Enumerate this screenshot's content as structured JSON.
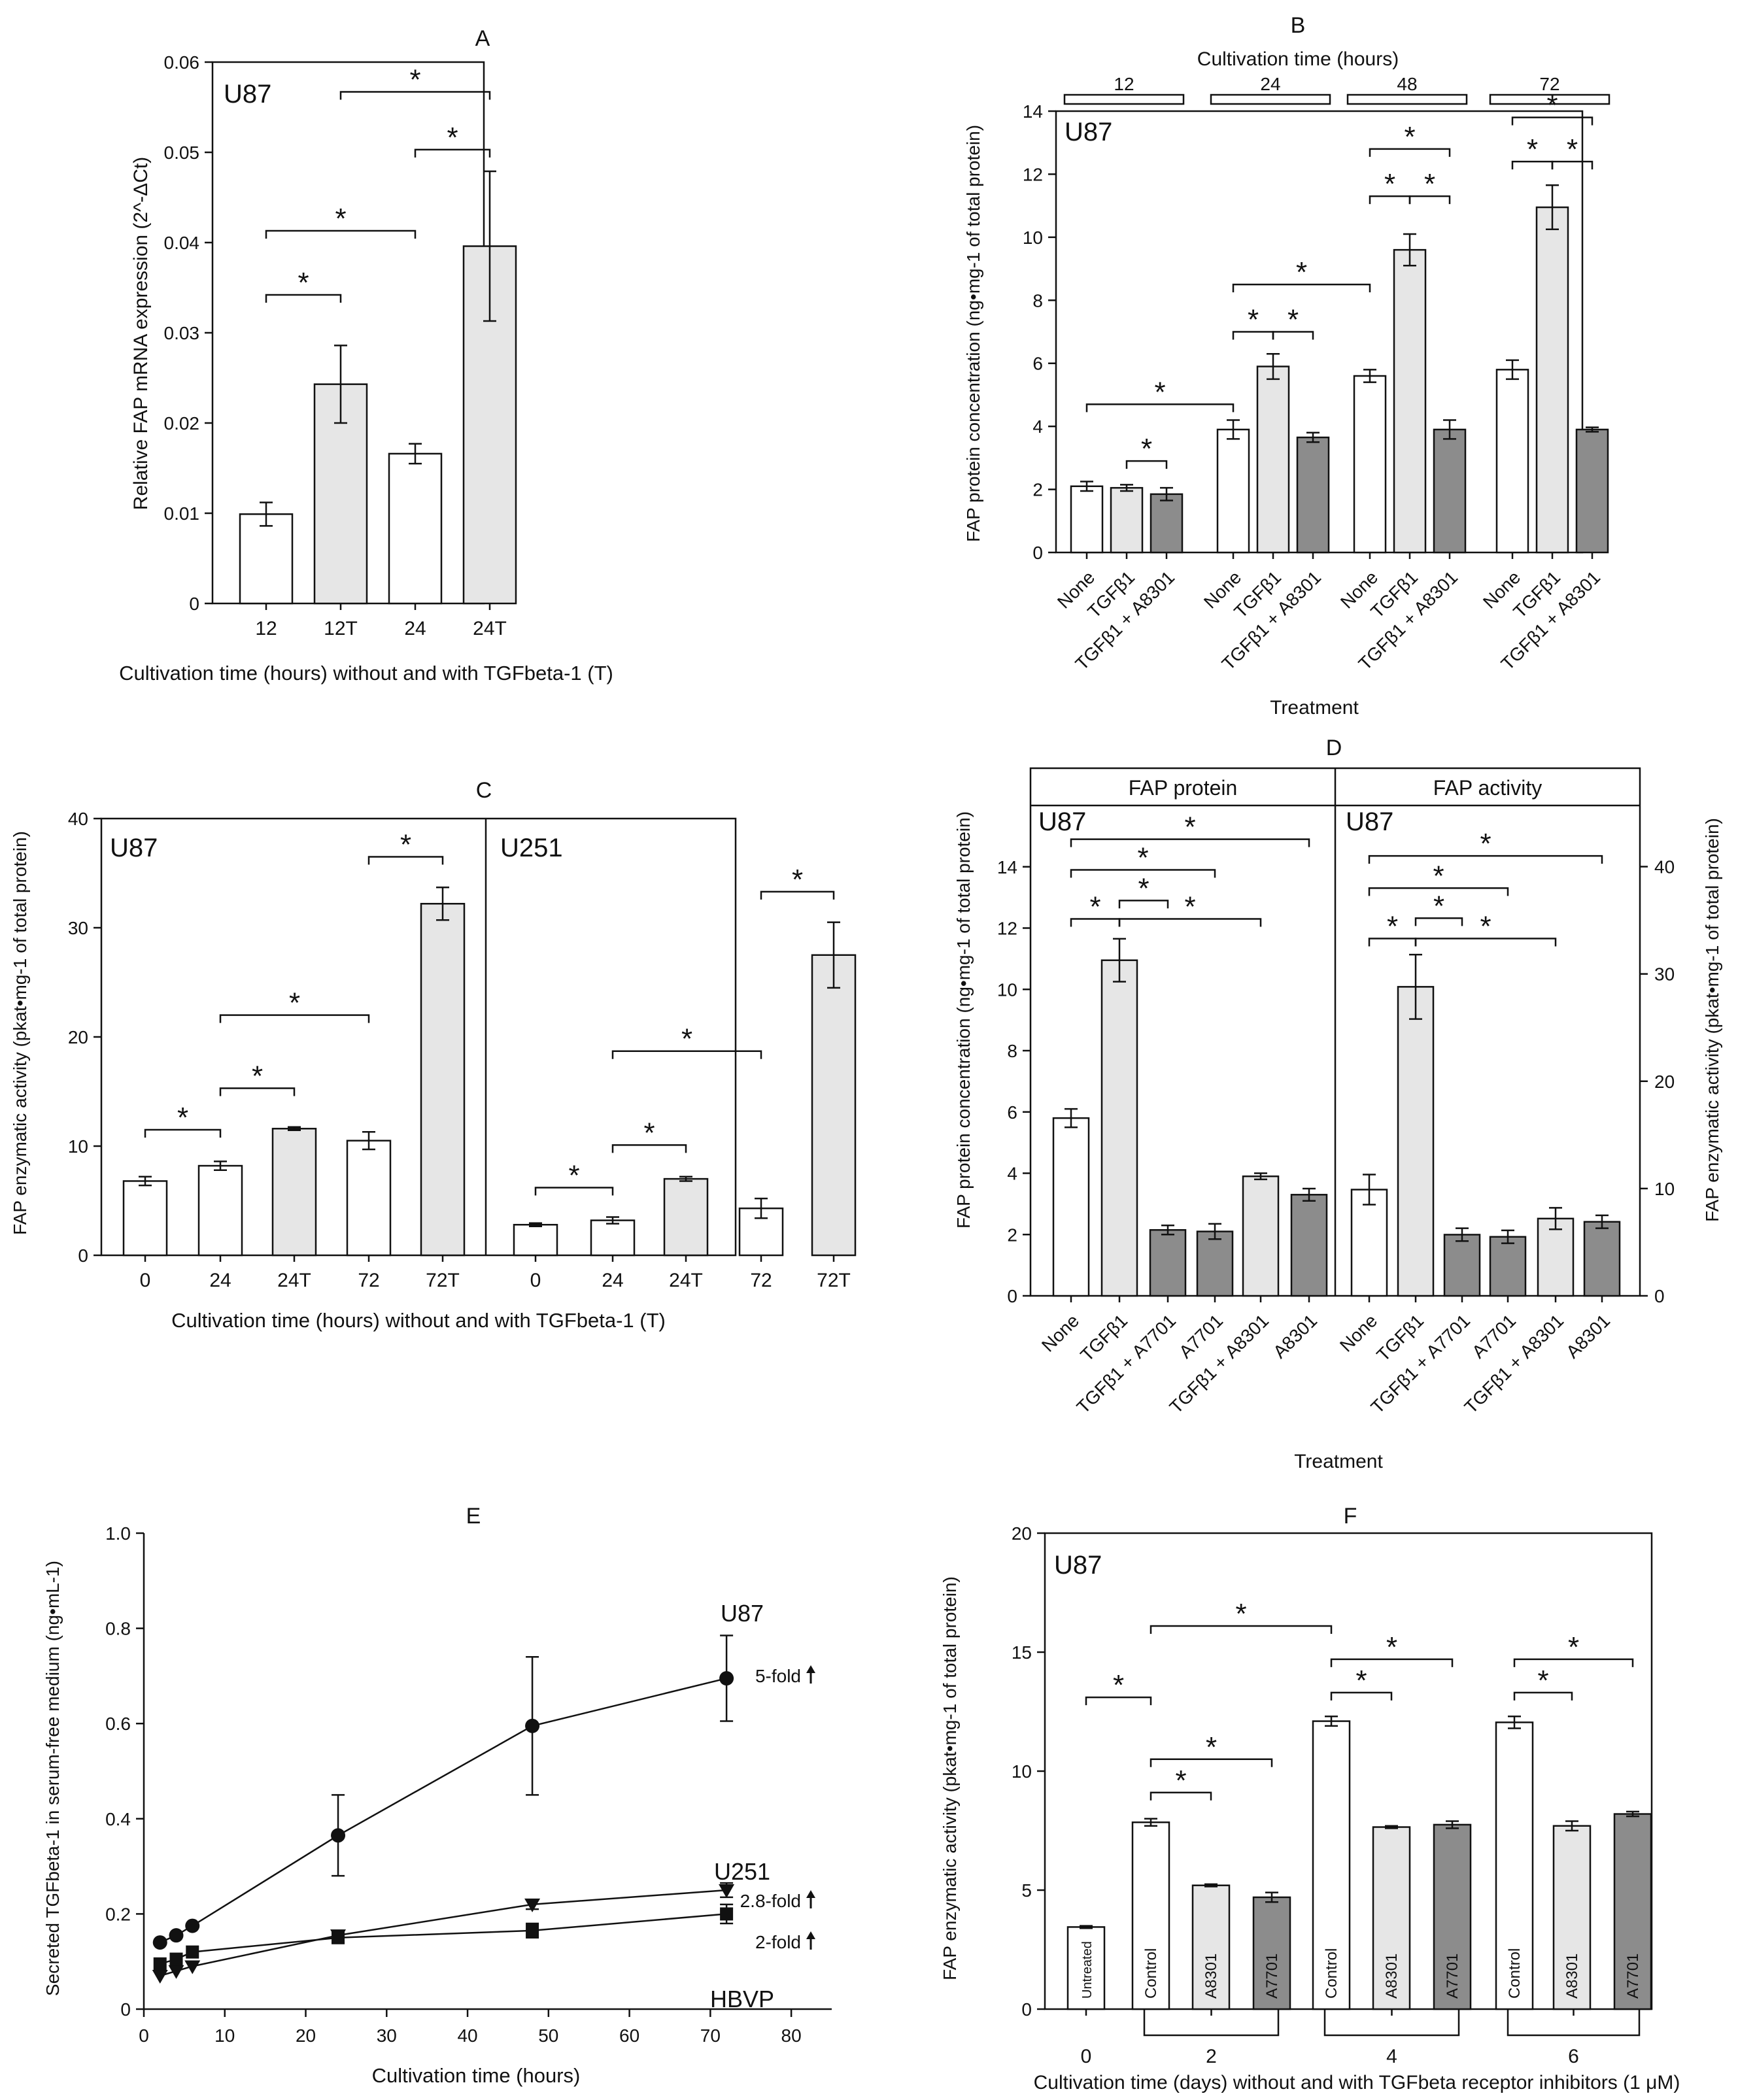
{
  "chart_data": [
    {
      "panel": "A",
      "type": "bar",
      "title": "A",
      "cell_label": "U87",
      "xlabel": "Cultivation time (hours) without and with TGFbeta-1 (T)",
      "ylabel": "Relative FAP mRNA expression (2^-ΔCt)",
      "ylim": [
        0,
        0.06
      ],
      "yticks": [
        {
          "v": 0,
          "t": "0"
        },
        {
          "v": 0.01,
          "t": "0.01"
        },
        {
          "v": 0.02,
          "t": "0.02"
        },
        {
          "v": 0.03,
          "t": "0.03"
        },
        {
          "v": 0.04,
          "t": "0.04"
        },
        {
          "v": 0.05,
          "t": "0.05"
        },
        {
          "v": 0.06,
          "t": "0.06"
        }
      ],
      "categories": [
        "12",
        "12T",
        "24",
        "24T"
      ],
      "values": [
        0.0099,
        0.0243,
        0.0166,
        0.0396
      ],
      "errors": [
        0.0013,
        0.0043,
        0.0011,
        0.0083
      ],
      "fills": [
        "white",
        "light",
        "white",
        "light"
      ],
      "significance": [
        {
          "a": 0,
          "b": 1,
          "y": 0.0342,
          "label": "*"
        },
        {
          "a": 0,
          "b": 2,
          "y": 0.0413,
          "label": "*"
        },
        {
          "a": 2,
          "b": 3,
          "y": 0.0503,
          "label": "*"
        },
        {
          "a": 1,
          "b": 3,
          "y": 0.0567,
          "label": "*"
        }
      ]
    },
    {
      "panel": "B",
      "type": "bar",
      "title": "B",
      "cell_label": "U87",
      "top_axis_label": "Cultivation time (hours)",
      "groups": [
        "12",
        "24",
        "48",
        "72"
      ],
      "xlabel": "Treatment",
      "ylabel": "FAP protein concentration (ng•mg-1 of total protein)",
      "ylim": [
        0,
        14
      ],
      "yticks": [
        {
          "v": 0,
          "t": "0"
        },
        {
          "v": 2,
          "t": "2"
        },
        {
          "v": 4,
          "t": "4"
        },
        {
          "v": 6,
          "t": "6"
        },
        {
          "v": 8,
          "t": "8"
        },
        {
          "v": 10,
          "t": "10"
        },
        {
          "v": 12,
          "t": "12"
        },
        {
          "v": 14,
          "t": "14"
        }
      ],
      "categories": [
        "None",
        "TGFβ1",
        "TGFβ1 + A8301",
        "None",
        "TGFβ1",
        "TGFβ1 + A8301",
        "None",
        "TGFβ1",
        "TGFβ1 + A8301",
        "None",
        "TGFβ1",
        "TGFβ1 + A8301"
      ],
      "values": [
        2.1,
        2.05,
        1.85,
        3.9,
        5.9,
        3.65,
        5.6,
        9.6,
        3.9,
        5.8,
        10.95,
        3.9
      ],
      "errors": [
        0.15,
        0.1,
        0.2,
        0.3,
        0.4,
        0.15,
        0.2,
        0.5,
        0.3,
        0.3,
        0.7,
        0.07
      ],
      "fills": [
        "white",
        "light",
        "dark",
        "white",
        "light",
        "dark",
        "white",
        "light",
        "dark",
        "white",
        "light",
        "dark"
      ],
      "significance": [
        {
          "a": 1,
          "b": 2,
          "y": 2.9,
          "label": "*"
        },
        {
          "a": 0,
          "b": 3,
          "y": 4.7,
          "label": "*"
        },
        {
          "a": 3,
          "b": 4,
          "y": 7.0,
          "label": "*"
        },
        {
          "a": 4,
          "b": 5,
          "y": 7.0,
          "label": "*"
        },
        {
          "a": 3,
          "b": 6,
          "y": 8.5,
          "label": "*"
        },
        {
          "a": 6,
          "b": 7,
          "y": 11.3,
          "label": "*"
        },
        {
          "a": 7,
          "b": 8,
          "y": 11.3,
          "label": "*"
        },
        {
          "a": 6,
          "b": 8,
          "y": 12.8,
          "label": "*"
        },
        {
          "a": 9,
          "b": 10,
          "y": 12.4,
          "label": "*"
        },
        {
          "a": 10,
          "b": 11,
          "y": 12.4,
          "label": "*"
        },
        {
          "a": 9,
          "b": 11,
          "y": 13.8,
          "label": "*"
        }
      ]
    },
    {
      "panel": "C",
      "type": "bar",
      "title": "C",
      "xlabel": "Cultivation time (hours) without and with TGFbeta-1 (T)",
      "ylabel": "FAP enzymatic activity (pkat•mg-1 of total protein)",
      "ylim": [
        0,
        40
      ],
      "yticks": [
        {
          "v": 0,
          "t": "0"
        },
        {
          "v": 10,
          "t": "10"
        },
        {
          "v": 20,
          "t": "20"
        },
        {
          "v": 30,
          "t": "30"
        },
        {
          "v": 40,
          "t": "40"
        }
      ],
      "cell_labels": [
        "U87",
        "U251"
      ],
      "categories": [
        "0",
        "24",
        "24T",
        "72",
        "72T",
        "0",
        "24",
        "24T",
        "72",
        "72T"
      ],
      "values": [
        6.8,
        8.2,
        11.6,
        10.5,
        32.2,
        2.8,
        3.2,
        7.0,
        4.3,
        27.5
      ],
      "errors": [
        0.4,
        0.4,
        0.15,
        0.8,
        1.5,
        0.15,
        0.3,
        0.2,
        0.9,
        3.0
      ],
      "fills": [
        "white",
        "white",
        "light",
        "white",
        "light",
        "white",
        "white",
        "light",
        "white",
        "light"
      ],
      "significance": [
        {
          "a": 0,
          "b": 1,
          "y": 11.5,
          "label": "*"
        },
        {
          "a": 1,
          "b": 2,
          "y": 15.3,
          "label": "*"
        },
        {
          "a": 1,
          "b": 3,
          "y": 22.0,
          "label": "*"
        },
        {
          "a": 3,
          "b": 4,
          "y": 36.5,
          "label": "*"
        },
        {
          "a": 5,
          "b": 6,
          "y": 6.2,
          "label": "*"
        },
        {
          "a": 6,
          "b": 7,
          "y": 10.1,
          "label": "*"
        },
        {
          "a": 6,
          "b": 8,
          "y": 18.7,
          "label": "*"
        },
        {
          "a": 8,
          "b": 9,
          "y": 33.3,
          "label": "*"
        }
      ]
    },
    {
      "panel": "D",
      "type": "bar",
      "title": "D",
      "section_labels": [
        "FAP protein",
        "FAP activity"
      ],
      "cell_labels": [
        "U87",
        "U87"
      ],
      "xlabel": "Treatment",
      "ylabel": "FAP protein concentration (ng•mg-1 of total protein)",
      "ylabel_right": "FAP enzymatic activity (pkat•mg-1 of total protein)",
      "ylim": [
        0,
        16
      ],
      "ylim_right": [
        0,
        45.7
      ],
      "yticks": [
        {
          "v": 0,
          "t": "0"
        },
        {
          "v": 2,
          "t": "2"
        },
        {
          "v": 4,
          "t": "4"
        },
        {
          "v": 6,
          "t": "6"
        },
        {
          "v": 8,
          "t": "8"
        },
        {
          "v": 10,
          "t": "10"
        },
        {
          "v": 12,
          "t": "12"
        },
        {
          "v": 14,
          "t": "14"
        }
      ],
      "yticks_right": [
        {
          "v": 0,
          "t": "0"
        },
        {
          "v": 10,
          "t": "10"
        },
        {
          "v": 20,
          "t": "20"
        },
        {
          "v": 30,
          "t": "30"
        },
        {
          "v": 40,
          "t": "40"
        }
      ],
      "categories": [
        "None",
        "TGFβ1",
        "TGFβ1 + A7701",
        "A7701",
        "TGFβ1 + A8301",
        "A8301"
      ],
      "series": [
        {
          "name": "FAP protein",
          "values": [
            5.8,
            10.95,
            2.15,
            2.1,
            3.9,
            3.3
          ],
          "errors": [
            0.3,
            0.7,
            0.15,
            0.25,
            0.1,
            0.2
          ]
        },
        {
          "name": "FAP activity",
          "values": [
            9.9,
            28.8,
            5.7,
            5.5,
            7.2,
            6.9
          ],
          "errors": [
            1.4,
            3.0,
            0.6,
            0.6,
            1.0,
            0.6
          ]
        }
      ],
      "fills": [
        "white",
        "light",
        "dark",
        "dark",
        "light",
        "dark"
      ],
      "significance_protein": [
        {
          "a": 0,
          "b": 1,
          "y": 12.3,
          "label": "*"
        },
        {
          "a": 1,
          "b": 2,
          "y": 12.9,
          "label": "*"
        },
        {
          "a": 1,
          "b": 4,
          "y": 12.3,
          "label": "*"
        },
        {
          "a": 0,
          "b": 3,
          "y": 13.9,
          "label": "*"
        },
        {
          "a": 0,
          "b": 5,
          "y": 14.9,
          "label": "*"
        }
      ],
      "significance_activity": [
        {
          "a": 0,
          "b": 1,
          "y": 33.3,
          "label": "*"
        },
        {
          "a": 1,
          "b": 2,
          "y": 35.2,
          "label": "*"
        },
        {
          "a": 1,
          "b": 4,
          "y": 33.3,
          "label": "*"
        },
        {
          "a": 0,
          "b": 3,
          "y": 38.0,
          "label": "*"
        },
        {
          "a": 0,
          "b": 5,
          "y": 41.0,
          "label": "*"
        }
      ]
    },
    {
      "panel": "E",
      "type": "line",
      "title": "E",
      "xlabel": "Cultivation time (hours)",
      "ylabel": "Secreted TGFbeta-1 in serum-free medium (ng•mL-1)",
      "xlim": [
        0,
        85
      ],
      "ylim": [
        0,
        1.0
      ],
      "xticks": [
        {
          "v": 0,
          "t": "0"
        },
        {
          "v": 10,
          "t": "10"
        },
        {
          "v": 20,
          "t": "20"
        },
        {
          "v": 30,
          "t": "30"
        },
        {
          "v": 40,
          "t": "40"
        },
        {
          "v": 50,
          "t": "50"
        },
        {
          "v": 60,
          "t": "60"
        },
        {
          "v": 70,
          "t": "70"
        },
        {
          "v": 80,
          "t": "80"
        }
      ],
      "yticks": [
        {
          "v": 0,
          "t": "0"
        },
        {
          "v": 0.2,
          "t": "0.2"
        },
        {
          "v": 0.4,
          "t": "0.4"
        },
        {
          "v": 0.6,
          "t": "0.6"
        },
        {
          "v": 0.8,
          "t": "0.8"
        },
        {
          "v": 1.0,
          "t": "1.0"
        }
      ],
      "series": [
        {
          "name": "U87",
          "marker": "circle",
          "x": [
            2,
            4,
            6,
            24,
            48,
            72
          ],
          "y": [
            0.14,
            0.155,
            0.175,
            0.365,
            0.595,
            0.695
          ],
          "errors": [
            0,
            0,
            0,
            0.085,
            0.145,
            0.09
          ],
          "fold_label": "5-fold"
        },
        {
          "name": "U251",
          "marker": "triangle-down",
          "x": [
            2,
            4,
            6,
            24,
            48,
            72
          ],
          "y": [
            0.07,
            0.08,
            0.09,
            0.155,
            0.22,
            0.25
          ],
          "errors": [
            0,
            0,
            0,
            0,
            0.01,
            0.015
          ],
          "fold_label": "2.8-fold"
        },
        {
          "name": "HBVP",
          "marker": "square",
          "x": [
            2,
            4,
            6,
            24,
            48,
            72
          ],
          "y": [
            0.095,
            0.105,
            0.12,
            0.15,
            0.165,
            0.2
          ],
          "errors": [
            0,
            0,
            0,
            0.01,
            0.015,
            0.02
          ],
          "fold_label": "2-fold"
        }
      ]
    },
    {
      "panel": "F",
      "type": "bar",
      "title": "F",
      "cell_label": "U87",
      "xlabel": "Cultivation time (days) without and with TGFbeta receptor inhibitors (1 μM)",
      "ylabel": "FAP enzymatic activity (pkat•mg-1 of total protein)",
      "ylim": [
        0,
        20
      ],
      "yticks": [
        {
          "v": 0,
          "t": "0"
        },
        {
          "v": 5,
          "t": "5"
        },
        {
          "v": 10,
          "t": "10"
        },
        {
          "v": 15,
          "t": "15"
        },
        {
          "v": 20,
          "t": "20"
        }
      ],
      "groups": [
        "0",
        "2",
        "4",
        "6"
      ],
      "categories": [
        "Untreated",
        "Control",
        "A8301",
        "A7701",
        "Control",
        "A8301",
        "A7701",
        "Control",
        "A8301",
        "A7701"
      ],
      "values": [
        3.45,
        7.85,
        5.2,
        4.7,
        12.1,
        7.65,
        7.75,
        12.05,
        7.7,
        8.2
      ],
      "errors": [
        0.05,
        0.15,
        0.05,
        0.2,
        0.2,
        0.05,
        0.15,
        0.25,
        0.2,
        0.1
      ],
      "fills": [
        "white",
        "white",
        "light",
        "dark",
        "white",
        "light",
        "dark",
        "white",
        "light",
        "dark"
      ],
      "significance": [
        {
          "a": 0,
          "b": 1,
          "y": 13.1,
          "label": "*"
        },
        {
          "a": 1,
          "b": 2,
          "y": 9.1,
          "label": "*"
        },
        {
          "a": 1,
          "b": 3,
          "y": 10.5,
          "label": "*"
        },
        {
          "a": 1,
          "b": 4,
          "y": 16.1,
          "label": "*"
        },
        {
          "a": 4,
          "b": 5,
          "y": 13.3,
          "label": "*"
        },
        {
          "a": 4,
          "b": 6,
          "y": 14.7,
          "label": "*"
        },
        {
          "a": 7,
          "b": 8,
          "y": 13.3,
          "label": "*"
        },
        {
          "a": 7,
          "b": 9,
          "y": 14.7,
          "label": "*"
        }
      ]
    }
  ]
}
